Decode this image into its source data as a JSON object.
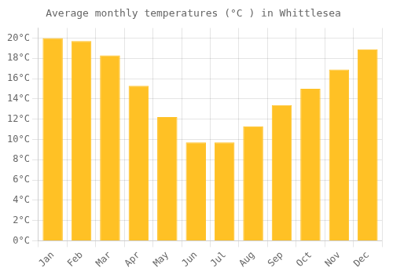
{
  "chart_data": {
    "type": "bar",
    "title": "Average monthly temperatures (°C ) in Whittlesea",
    "categories": [
      "Jan",
      "Feb",
      "Mar",
      "Apr",
      "May",
      "Jun",
      "Jul",
      "Aug",
      "Sep",
      "Oct",
      "Nov",
      "Dec"
    ],
    "values": [
      20.0,
      19.7,
      18.3,
      15.3,
      12.2,
      9.7,
      9.7,
      11.3,
      13.4,
      15.0,
      16.9,
      18.9
    ],
    "color": "#FFC125",
    "ylim": [
      0,
      21
    ],
    "yticks": [
      {
        "value": 0,
        "label": "0°C"
      },
      {
        "value": 2,
        "label": "2°C"
      },
      {
        "value": 4,
        "label": "4°C"
      },
      {
        "value": 6,
        "label": "6°C"
      },
      {
        "value": 8,
        "label": "8°C"
      },
      {
        "value": 10,
        "label": "10°C"
      },
      {
        "value": 12,
        "label": "12°C"
      },
      {
        "value": 14,
        "label": "14°C"
      },
      {
        "value": 16,
        "label": "16°C"
      },
      {
        "value": 18,
        "label": "18°C"
      },
      {
        "value": 20,
        "label": "20°C"
      }
    ],
    "grid": true
  }
}
